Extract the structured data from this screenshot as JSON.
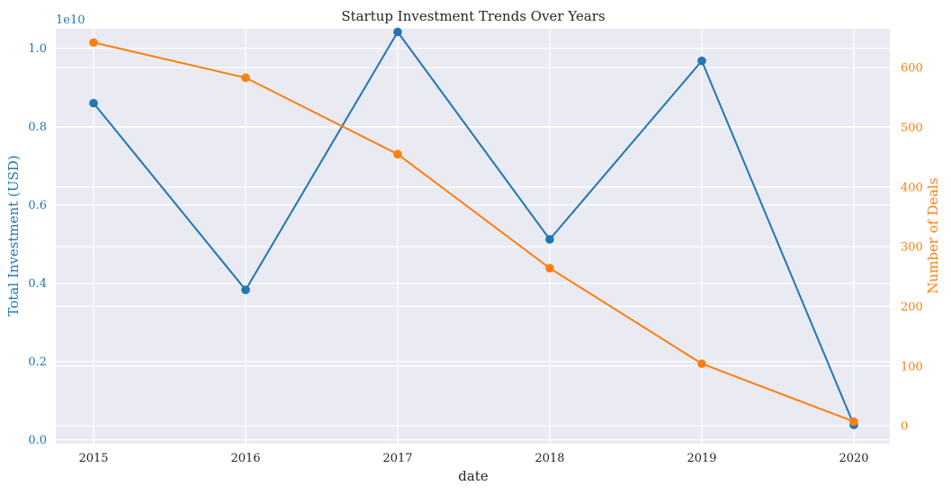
{
  "chart_data": {
    "type": "line",
    "title": "Startup Investment Trends Over Years",
    "xlabel": "date",
    "categories": [
      "2015",
      "2016",
      "2017",
      "2018",
      "2019",
      "2020"
    ],
    "y_left": {
      "label": "Total Investment (USD)",
      "offset_label": "1e10",
      "ticks": [
        "0.0",
        "0.2",
        "0.4",
        "0.6",
        "0.8",
        "1.0"
      ],
      "tick_values": [
        0.0,
        0.2,
        0.4,
        0.6,
        0.8,
        1.0
      ],
      "ylim": [
        -0.01,
        1.05
      ],
      "color": "#1f77b4"
    },
    "y_right": {
      "label": "Number of Deals",
      "ticks": [
        "0",
        "100",
        "200",
        "300",
        "400",
        "500",
        "600"
      ],
      "tick_values": [
        0,
        100,
        200,
        300,
        400,
        500,
        600
      ],
      "ylim": [
        -30,
        665
      ],
      "color": "#ff7f0e"
    },
    "series": [
      {
        "axis": "left",
        "color": "#1f77b4",
        "values": [
          0.86,
          0.383,
          1.042,
          0.512,
          0.968,
          0.038
        ]
      },
      {
        "axis": "right",
        "color": "#ff7f0e",
        "values": [
          642,
          583,
          455,
          264,
          104,
          7
        ]
      }
    ],
    "grid": true,
    "background": "#eaeaf2"
  }
}
